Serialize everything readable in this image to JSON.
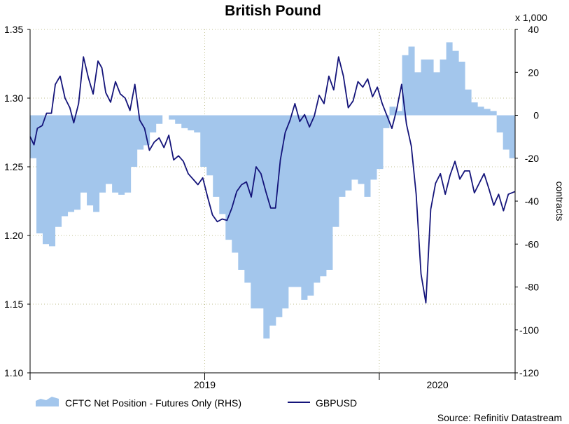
{
  "chart_data": {
    "type": "line+area",
    "title": "British Pound",
    "y_left": {
      "ylim": [
        1.1,
        1.35
      ],
      "ticks": [
        "1.10",
        "1.15",
        "1.20",
        "1.25",
        "1.30",
        "1.35"
      ]
    },
    "y_right": {
      "ylim": [
        -120,
        40
      ],
      "ticks": [
        "-120",
        "-100",
        "-80",
        "-60",
        "-40",
        "-20",
        "0",
        "20",
        "40"
      ],
      "multiplier": "x 1,000",
      "label": "contracts"
    },
    "x": {
      "ticks": [
        "2019",
        "2020"
      ],
      "tick_positions": [
        0.0,
        0.36,
        0.72,
        1.0
      ],
      "label_positions": [
        0.36,
        0.84
      ]
    },
    "grid": true,
    "legend": {
      "position": "bottom",
      "items": [
        "CFTC Net Position - Futures Only (RHS)",
        "GBPUSD"
      ]
    },
    "source": "Source: Refinitiv Datastream",
    "series": [
      {
        "name": "CFTC Net Position - Futures Only (RHS)",
        "type": "area-step",
        "axis": "right",
        "color": "#a3c6ec",
        "t": [
          0.0,
          0.013,
          0.026,
          0.039,
          0.052,
          0.065,
          0.078,
          0.091,
          0.104,
          0.117,
          0.13,
          0.143,
          0.156,
          0.169,
          0.182,
          0.195,
          0.208,
          0.221,
          0.234,
          0.247,
          0.26,
          0.273,
          0.286,
          0.299,
          0.312,
          0.325,
          0.338,
          0.351,
          0.364,
          0.377,
          0.39,
          0.403,
          0.416,
          0.429,
          0.442,
          0.455,
          0.468,
          0.481,
          0.494,
          0.507,
          0.52,
          0.533,
          0.546,
          0.559,
          0.572,
          0.585,
          0.598,
          0.611,
          0.624,
          0.637,
          0.65,
          0.663,
          0.676,
          0.689,
          0.702,
          0.715,
          0.728,
          0.741,
          0.754,
          0.767,
          0.78,
          0.793,
          0.806,
          0.819,
          0.832,
          0.845,
          0.858,
          0.871,
          0.884,
          0.897,
          0.91,
          0.923,
          0.936,
          0.949,
          0.962,
          0.975,
          0.988,
          1.0
        ],
        "values": [
          -20,
          -55,
          -60,
          -61,
          -52,
          -47,
          -45,
          -44,
          -36,
          -42,
          -45,
          -36,
          -32,
          -36,
          -37,
          -36,
          -24,
          -16,
          -14,
          -8,
          -4,
          0,
          -2,
          -4,
          -6,
          -7,
          -8,
          -24,
          -28,
          -38,
          -46,
          -58,
          -64,
          -72,
          -78,
          -90,
          -90,
          -104,
          -98,
          -94,
          -90,
          -80,
          -80,
          -86,
          -84,
          -78,
          -75,
          -72,
          -52,
          -38,
          -35,
          -30,
          -32,
          -38,
          -30,
          -25,
          -6,
          4,
          2,
          28,
          32,
          20,
          26,
          26,
          20,
          26,
          34,
          30,
          25,
          12,
          6,
          4,
          3,
          2,
          -8,
          -16,
          -20,
          -22
        ]
      },
      {
        "name": "GBPUSD",
        "type": "line",
        "axis": "left",
        "color": "#14147a",
        "t": [
          0.0,
          0.008,
          0.015,
          0.025,
          0.034,
          0.044,
          0.052,
          0.062,
          0.072,
          0.082,
          0.09,
          0.1,
          0.11,
          0.12,
          0.13,
          0.14,
          0.148,
          0.156,
          0.166,
          0.176,
          0.186,
          0.196,
          0.206,
          0.216,
          0.226,
          0.236,
          0.246,
          0.256,
          0.266,
          0.276,
          0.286,
          0.296,
          0.306,
          0.316,
          0.326,
          0.336,
          0.346,
          0.356,
          0.366,
          0.376,
          0.386,
          0.396,
          0.406,
          0.416,
          0.426,
          0.436,
          0.446,
          0.456,
          0.466,
          0.476,
          0.486,
          0.496,
          0.506,
          0.516,
          0.526,
          0.536,
          0.546,
          0.556,
          0.566,
          0.576,
          0.586,
          0.596,
          0.606,
          0.616,
          0.626,
          0.636,
          0.646,
          0.656,
          0.666,
          0.676,
          0.686,
          0.696,
          0.706,
          0.716,
          0.726,
          0.736,
          0.746,
          0.756,
          0.766,
          0.776,
          0.786,
          0.796,
          0.806,
          0.816,
          0.826,
          0.836,
          0.846,
          0.856,
          0.866,
          0.876,
          0.886,
          0.896,
          0.906,
          0.916,
          0.926,
          0.936,
          0.946,
          0.956,
          0.966,
          0.976,
          0.986,
          1.0
        ],
        "values": [
          1.272,
          1.266,
          1.278,
          1.28,
          1.289,
          1.289,
          1.31,
          1.316,
          1.3,
          1.293,
          1.282,
          1.296,
          1.33,
          1.315,
          1.303,
          1.327,
          1.322,
          1.304,
          1.297,
          1.312,
          1.303,
          1.3,
          1.291,
          1.31,
          1.284,
          1.278,
          1.262,
          1.268,
          1.271,
          1.264,
          1.273,
          1.255,
          1.258,
          1.254,
          1.245,
          1.241,
          1.237,
          1.242,
          1.228,
          1.215,
          1.21,
          1.212,
          1.211,
          1.22,
          1.232,
          1.237,
          1.239,
          1.228,
          1.25,
          1.245,
          1.232,
          1.22,
          1.22,
          1.255,
          1.275,
          1.284,
          1.296,
          1.283,
          1.288,
          1.279,
          1.287,
          1.302,
          1.296,
          1.316,
          1.306,
          1.33,
          1.316,
          1.293,
          1.298,
          1.312,
          1.308,
          1.314,
          1.301,
          1.308,
          1.296,
          1.287,
          1.278,
          1.292,
          1.31,
          1.281,
          1.265,
          1.23,
          1.172,
          1.151,
          1.219,
          1.238,
          1.245,
          1.23,
          1.244,
          1.254,
          1.241,
          1.247,
          1.247,
          1.231,
          1.238,
          1.245,
          1.234,
          1.222,
          1.23,
          1.218,
          1.23,
          1.232
        ]
      }
    ]
  }
}
